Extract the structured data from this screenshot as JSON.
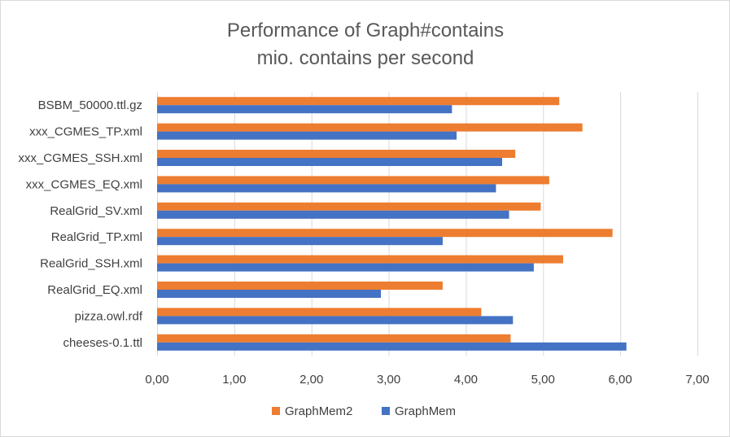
{
  "chart_data": {
    "type": "bar",
    "orientation": "horizontal",
    "title": [
      "Performance of Graph#contains",
      "mio. contains per second"
    ],
    "categories": [
      "BSBM_50000.ttl.gz",
      "xxx_CGMES_TP.xml",
      "xxx_CGMES_SSH.xml",
      "xxx_CGMES_EQ.xml",
      "RealGrid_SV.xml",
      "RealGrid_TP.xml",
      "RealGrid_SSH.xml",
      "RealGrid_EQ.xml",
      "pizza.owl.rdf",
      "cheeses-0.1.ttl"
    ],
    "series": [
      {
        "name": "GraphMem2",
        "color": "#ed7d31",
        "values": [
          5.21,
          5.51,
          4.64,
          5.08,
          4.97,
          5.9,
          5.26,
          3.7,
          4.2,
          4.58
        ]
      },
      {
        "name": "GraphMem",
        "color": "#4472c4",
        "values": [
          3.82,
          3.88,
          4.47,
          4.39,
          4.56,
          3.7,
          4.88,
          2.9,
          4.61,
          6.08
        ]
      }
    ],
    "xlim": [
      0,
      7
    ],
    "x_ticks": [
      "0,00",
      "1,00",
      "2,00",
      "3,00",
      "4,00",
      "5,00",
      "6,00",
      "7,00"
    ],
    "legend": [
      "GraphMem2",
      "GraphMem"
    ],
    "legend_position": "bottom",
    "grid": true
  }
}
